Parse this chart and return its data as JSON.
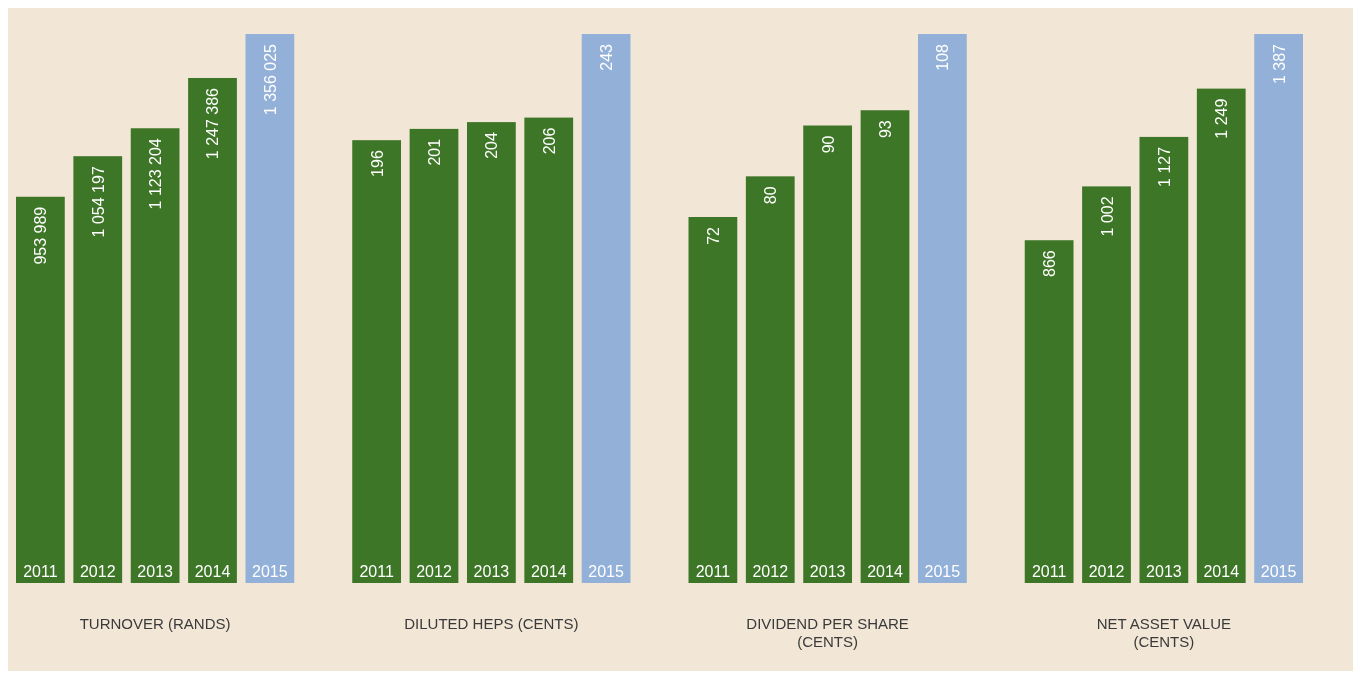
{
  "chart_data": [
    {
      "type": "bar",
      "title": "TURNOVER (RANDS)",
      "categories": [
        "2011",
        "2012",
        "2013",
        "2014",
        "2015"
      ],
      "values": [
        953989,
        1054197,
        1123204,
        1247386,
        1356025
      ],
      "value_labels": [
        "953 989",
        "1 054 197",
        "1 123 204",
        "1 247 386",
        "1 356 025"
      ],
      "colors": [
        "#3e7627",
        "#3e7627",
        "#3e7627",
        "#3e7627",
        "#93b0d8"
      ],
      "tick_labels": false
    },
    {
      "type": "bar",
      "title": "DILUTED HEPS (CENTS)",
      "categories": [
        "2011",
        "2012",
        "2013",
        "2014",
        "2015"
      ],
      "values": [
        196,
        201,
        204,
        206,
        243
      ],
      "value_labels": [
        "196",
        "201",
        "204",
        "206",
        "243"
      ],
      "colors": [
        "#3e7627",
        "#3e7627",
        "#3e7627",
        "#3e7627",
        "#93b0d8"
      ],
      "tick_labels": false
    },
    {
      "type": "bar",
      "title": "DIVIDEND PER SHARE (CENTS)",
      "categories": [
        "2011",
        "2012",
        "2013",
        "2014",
        "2015"
      ],
      "values": [
        72,
        80,
        90,
        93,
        108
      ],
      "value_labels": [
        "72",
        "80",
        "90",
        "93",
        "108"
      ],
      "colors": [
        "#3e7627",
        "#3e7627",
        "#3e7627",
        "#3e7627",
        "#93b0d8"
      ],
      "tick_labels": false
    },
    {
      "type": "bar",
      "title": "NET ASSET VALUE (CENTS)",
      "categories": [
        "2011",
        "2012",
        "2013",
        "2014",
        "2015"
      ],
      "values": [
        866,
        1002,
        1127,
        1249,
        1387
      ],
      "value_labels": [
        "866",
        "1 002",
        "1 127",
        "1 249",
        "1 387"
      ],
      "colors": [
        "#3e7627",
        "#3e7627",
        "#3e7627",
        "#3e7627",
        "#93b0d8"
      ],
      "tick_labels": false
    }
  ]
}
